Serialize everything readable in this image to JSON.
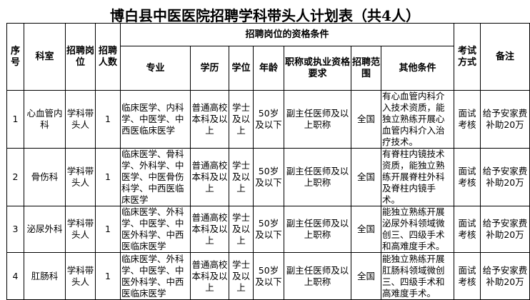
{
  "title": "博白县中医医院招聘学科带头人计划表（共4人）",
  "headers": {
    "seq": "序号",
    "dept": "科室",
    "position": "招聘岗位",
    "count": "招聘人数",
    "qualifications": "招聘岗位的资格条件",
    "major": "专业",
    "education": "学历",
    "degree": "学位",
    "age": "年龄",
    "title_req": "职称或执业资格要求",
    "scope": "招聘范围",
    "other": "其他条件",
    "exam": "考试方式",
    "remark": "备注"
  },
  "rows": [
    {
      "seq": "1",
      "dept": "心血管内科",
      "position": "学科带头人",
      "count": "1",
      "major": "临床医学、内科学、中医学、中西医临床医学",
      "education": "普通高校本科及以上",
      "degree": "学士及以上",
      "age": "50岁及以下",
      "title_req": "副主任医师及以上职称",
      "scope": "全国",
      "other": "有心血管内科介入技术资质，能独立熟练开展心血管内科介入治疗技术。",
      "exam": "面试考核",
      "remark": "给予安家费补助20万"
    },
    {
      "seq": "2",
      "dept": "骨伤科",
      "position": "学科带头人",
      "count": "1",
      "major": "临床医学、骨科学、外科学、中医学、中医骨伤科学、中西医临床医学",
      "education": "普通高校本科及以上",
      "degree": "学士及以上",
      "age": "50岁及以下",
      "title_req": "副主任医师及以上职称",
      "scope": "全国",
      "other": "有脊柱内镜技术资质，能独立熟练开展脊柱外科及脊柱内镜手术。",
      "exam": "面试考核",
      "remark": "给予安家费补助20万"
    },
    {
      "seq": "3",
      "dept": "泌尿外科",
      "position": "学科带头人",
      "count": "1",
      "major": "临床医学、外科学、中医学、中医外科学、中西医临床医学",
      "education": "普通高校本科及以上",
      "degree": "学士及以上",
      "age": "50岁及以下",
      "title_req": "副主任医师及以上职称",
      "scope": "全国",
      "other": "能独立熟练开展泌尿外科领域微创三、四级手术和高难度手术。",
      "exam": "面试考核",
      "remark": "给予安家费补助20万"
    },
    {
      "seq": "4",
      "dept": "肛肠科",
      "position": "学科带头人",
      "count": "1",
      "major": "临床医学、外科学、中医学、中医外科学、中西医临床医学",
      "education": "普通高校本科及以上",
      "degree": "学士及以上",
      "age": "50岁及以下",
      "title_req": "副主任医师及以上职称",
      "scope": "全国",
      "other": "能独立熟练开展肛肠科领域微创三、四级手术和高难度手术。",
      "exam": "面试考核",
      "remark": "给予安家费补助20万"
    }
  ]
}
